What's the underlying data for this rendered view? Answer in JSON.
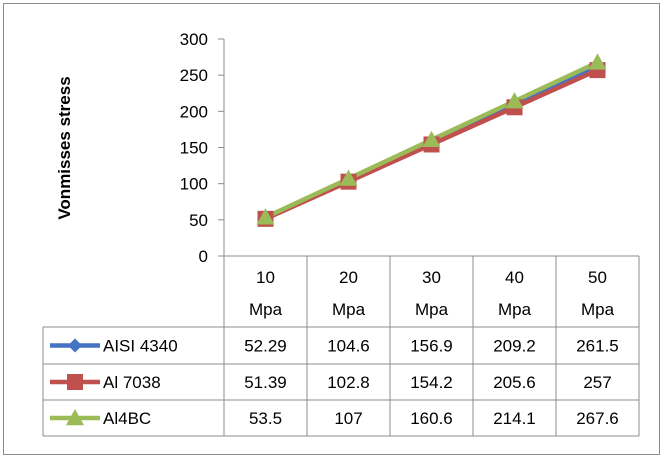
{
  "chart_data": {
    "type": "line",
    "ylabel": "Vonmisses stress",
    "ylim": [
      0,
      300
    ],
    "yticks": [
      0,
      50,
      100,
      150,
      200,
      250,
      300
    ],
    "categories": [
      {
        "value": "10",
        "unit": "Mpa"
      },
      {
        "value": "20",
        "unit": "Mpa"
      },
      {
        "value": "30",
        "unit": "Mpa"
      },
      {
        "value": "40",
        "unit": "Mpa"
      },
      {
        "value": "50",
        "unit": "Mpa"
      }
    ],
    "grid": false,
    "legend": "data-table-left",
    "series": [
      {
        "name": "AISI 4340",
        "color": "#4472C4",
        "marker": "diamond",
        "values": [
          52.29,
          104.6,
          156.9,
          209.2,
          261.5
        ],
        "labels": [
          "52.29",
          "104.6",
          "156.9",
          "209.2",
          "261.5"
        ]
      },
      {
        "name": "Al 7038",
        "color": "#C0504D",
        "marker": "square",
        "values": [
          51.39,
          102.8,
          154.2,
          205.6,
          257
        ],
        "labels": [
          "51.39",
          "102.8",
          "154.2",
          "205.6",
          "257"
        ]
      },
      {
        "name": "Al4BC",
        "color": "#9BBB59",
        "marker": "triangle",
        "values": [
          53.5,
          107,
          160.6,
          214.1,
          267.6
        ],
        "labels": [
          "53.5",
          "107",
          "160.6",
          "214.1",
          "267.6"
        ]
      }
    ]
  }
}
